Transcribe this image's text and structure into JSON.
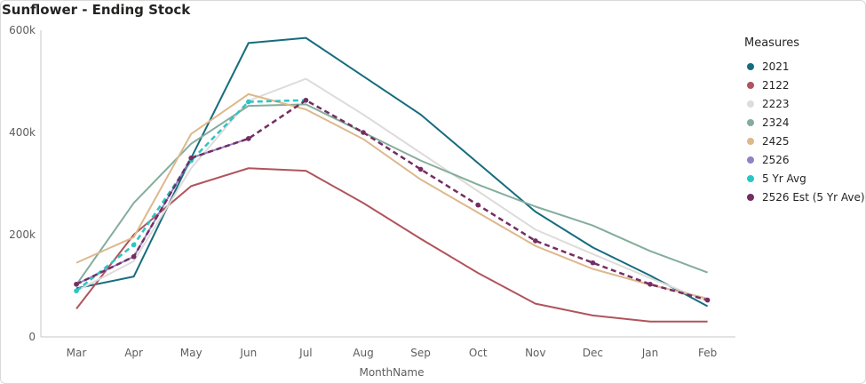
{
  "title": "Sunflower - Ending Stock",
  "chart_data": {
    "type": "line",
    "title": "Sunflower - Ending Stock",
    "xlabel": "MonthName",
    "ylabel": "",
    "categories": [
      "Mar",
      "Apr",
      "May",
      "Jun",
      "Jul",
      "Aug",
      "Sep",
      "Oct",
      "Nov",
      "Dec",
      "Jan",
      "Feb"
    ],
    "ylim": [
      0,
      600000
    ],
    "yticks": [
      0,
      200000,
      400000,
      600000
    ],
    "ytick_labels": [
      "0",
      "200k",
      "400k",
      "600k"
    ],
    "grid": false,
    "legend_title": "Measures",
    "legend_position": "right",
    "series": [
      {
        "name": "2021",
        "color": "#166c7d",
        "dashed": false,
        "markers": false,
        "values": [
          95000,
          118000,
          350000,
          575000,
          585000,
          null,
          435000,
          null,
          245000,
          175000,
          120000,
          60000
        ]
      },
      {
        "name": "2122",
        "color": "#b0545c",
        "dashed": false,
        "markers": false,
        "values": [
          55000,
          200000,
          295000,
          330000,
          325000,
          262000,
          192000,
          125000,
          65000,
          42000,
          30000,
          30000
        ]
      },
      {
        "name": "2223",
        "color": "#dedcda",
        "dashed": false,
        "markers": false,
        "values": [
          90000,
          148000,
          330000,
          462000,
          505000,
          435000,
          360000,
          285000,
          210000,
          162000,
          115000,
          70000
        ]
      },
      {
        "name": "2324",
        "color": "#84ad9b",
        "dashed": false,
        "markers": false,
        "values": [
          102000,
          262000,
          378000,
          452000,
          455000,
          400000,
          345000,
          298000,
          255000,
          218000,
          168000,
          126000
        ]
      },
      {
        "name": "2425",
        "color": "#ddb88c",
        "dashed": false,
        "markers": false,
        "values": [
          145000,
          195000,
          397000,
          475000,
          445000,
          387000,
          308000,
          243000,
          178000,
          133000,
          102000,
          75000
        ]
      },
      {
        "name": "2526",
        "color": "#8f83c6",
        "dashed": false,
        "markers": true,
        "values": [
          103000,
          157000,
          350000,
          388000,
          null,
          null,
          null,
          null,
          null,
          null,
          null,
          null
        ]
      },
      {
        "name": "5 Yr Avg",
        "color": "#2ec4c4",
        "dashed": true,
        "markers": true,
        "values": [
          90000,
          180000,
          345000,
          460000,
          463000,
          null,
          null,
          null,
          null,
          null,
          null,
          null
        ]
      },
      {
        "name": "2526 Est (5 Yr Ave)",
        "color": "#752d63",
        "dashed": true,
        "markers": true,
        "values": [
          103000,
          157000,
          350000,
          388000,
          463000,
          400000,
          328000,
          258000,
          188000,
          145000,
          103000,
          72000
        ]
      }
    ]
  }
}
